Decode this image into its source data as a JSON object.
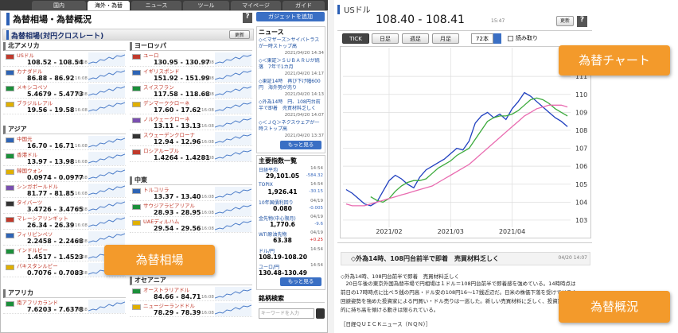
{
  "tabs": [
    "国内",
    "海外・為替",
    "ニュース",
    "ツール",
    "マイページ",
    "ガイド"
  ],
  "header": {
    "title": "為替相場・為替概況",
    "help": "?",
    "gadget": "ガジェットを追加"
  },
  "rates": {
    "title": "為替相場(対円クロスレート)",
    "refresh": "更新",
    "left": [
      {
        "region": "北アメリカ",
        "rows": [
          {
            "name": "USドル",
            "rate": "108.52 - 108.54",
            "time": "16:08"
          },
          {
            "name": "カナダドル",
            "rate": "86.88 - 86.92",
            "time": "16:08"
          },
          {
            "name": "メキシコペソ",
            "rate": "5.4679 - 5.4773",
            "time": "16:08"
          },
          {
            "name": "ブラジルレアル",
            "rate": "19.56 - 19.58",
            "time": "16:08"
          }
        ]
      },
      {
        "region": "アジア",
        "rows": [
          {
            "name": "中国元",
            "rate": "16.70 - 16.71",
            "time": "16:08"
          },
          {
            "name": "香港ドル",
            "rate": "13.97 - 13.98",
            "time": "16:08"
          },
          {
            "name": "韓国ウォン",
            "rate": "0.0974 - 0.0977",
            "time": "16:08"
          },
          {
            "name": "シンガポールドル",
            "rate": "81.77 - 81.85",
            "time": "16:08"
          },
          {
            "name": "タイバーツ",
            "rate": "3.4726 - 3.4765",
            "time": "16:08"
          },
          {
            "name": "マレーシアリンギット",
            "rate": "26.34 - 26.39",
            "time": "16:08"
          },
          {
            "name": "フィリピンペソ",
            "rate": "2.2458 - 2.2468",
            "time": "16:08"
          },
          {
            "name": "インドルピー",
            "rate": "1.4517 - 1.4523",
            "time": "16:08"
          },
          {
            "name": "パキスタンルピー",
            "rate": "0.7076 - 0.7083",
            "time": "16:08"
          }
        ]
      },
      {
        "region": "アフリカ",
        "rows": [
          {
            "name": "南アフリカランド",
            "rate": "7.6203 - 7.6378",
            "time": "16:08"
          }
        ]
      }
    ],
    "right": [
      {
        "region": "ヨーロッパ",
        "rows": [
          {
            "name": "ユーロ",
            "rate": "130.95 - 130.97",
            "time": "16:08"
          },
          {
            "name": "イギリスポンド",
            "rate": "151.92 - 151.99",
            "time": "16:08"
          },
          {
            "name": "スイスフラン",
            "rate": "117.58 - 118.68",
            "time": "16:08"
          },
          {
            "name": "デンマーククローネ",
            "rate": "17.60 - 17.62",
            "time": "16:08"
          },
          {
            "name": "ノルウェークローネ",
            "rate": "13.11 - 13.13",
            "time": "16:08"
          },
          {
            "name": "スウェーデンクローナ",
            "rate": "12.94 - 12.96",
            "time": "16:08"
          },
          {
            "name": "ロシアルーブル",
            "rate": "1.4264 - 1.4281",
            "time": "16:08"
          }
        ]
      },
      {
        "region": "中東",
        "rows": [
          {
            "name": "トルコリラ",
            "rate": "13.37 - 13.40",
            "time": "16:08"
          },
          {
            "name": "サウジアラビアリアル",
            "rate": "28.93 - 28.95",
            "time": "16:08"
          },
          {
            "name": "UAEディルハム",
            "rate": "29.54 - 29.56",
            "time": "16:08"
          }
        ]
      },
      {
        "region": "オセアニア",
        "rows": [
          {
            "name": "オーストラリアドル",
            "rate": "84.66 - 84.71",
            "time": "16:08"
          },
          {
            "name": "ニュージーランドドル",
            "rate": "78.29 - 78.39",
            "time": "16:08"
          }
        ]
      }
    ]
  },
  "news": {
    "title": "ニュース",
    "items": [
      {
        "text": "◇＜マザーズ＞サイバトラスが一時ストップ高",
        "date": "2021/04/20 14:34"
      },
      {
        "text": "◇＜東証＞ＳＵＢＡＲＵが続落　7年で1カ月",
        "date": "2021/04/20 14:17"
      },
      {
        "text": "◇東証14時　再び下げ幅600円　海外勢が売り",
        "date": "2021/04/20 14:13"
      },
      {
        "text": "◇外為14時　円、108円台前半で即着　売買材料乏しく",
        "date": "2021/04/20 14:07"
      },
      {
        "text": "◇＜ＪＱ＞ネクスウェアが一時ストップ高",
        "date": "2021/04/20 13:37"
      }
    ],
    "more": "もっと見る"
  },
  "indices": {
    "title": "主要指数一覧",
    "items": [
      {
        "name": "日経平均",
        "time": "14:54",
        "value": "29,101.05",
        "change": "-584.32"
      },
      {
        "name": "TOPIX",
        "time": "14:54",
        "value": "1,926.41",
        "change": "-30.15"
      },
      {
        "name": "10年国債利回り",
        "time": "04/19",
        "value": "0.080",
        "change": "-0.005"
      },
      {
        "name": "金先物(中心限月)",
        "time": "04/19",
        "value": "1,770.6",
        "change": "-9.6"
      },
      {
        "name": "WTI原油先物",
        "time": "04/19",
        "value": "63.38",
        "change": "+0.25"
      },
      {
        "name": "ドル/円",
        "time": "14:54",
        "value": "108.19-108.20"
      },
      {
        "name": "ユーロ/円",
        "time": "14:54",
        "value": "130.48-130.49"
      }
    ],
    "more": "もっと見る"
  },
  "search": {
    "title": "銘柄検索",
    "placeholder": "キーワードを入力"
  },
  "usd": {
    "name": "USドル",
    "rate": "108.40 - 108.41",
    "time": "15:47",
    "refresh": "更新",
    "help": "?",
    "buttons": [
      "TICK",
      "日足",
      "週足",
      "月足"
    ],
    "count": "72本",
    "read": "読み取り"
  },
  "chart_data": {
    "type": "line",
    "grid": true,
    "categories": [
      null,
      null,
      null,
      null,
      null,
      null,
      null,
      "2021/02",
      null,
      null,
      null,
      null,
      null,
      null,
      null,
      null,
      null,
      "2021/03",
      null,
      null,
      null,
      null,
      null,
      null,
      null,
      null,
      null,
      "2021/04",
      null,
      null,
      null,
      null,
      null,
      null,
      null,
      null,
      null
    ],
    "ylim": [
      102.6,
      112.6
    ],
    "yticks": [
      103,
      104,
      105,
      106,
      107,
      108,
      109,
      110,
      111
    ],
    "series": [
      {
        "color": "#1f3fbf",
        "values": [
          104.7,
          104.5,
          104.2,
          103.9,
          103.8,
          104.0,
          104.6,
          105.2,
          105.5,
          105.3,
          105.0,
          104.8,
          105.4,
          105.8,
          106.0,
          106.2,
          106.4,
          106.7,
          107.0,
          106.9,
          107.4,
          108.4,
          108.8,
          109.0,
          108.7,
          108.9,
          108.6,
          109.2,
          109.6,
          110.1,
          109.9,
          109.6,
          109.3,
          109.0,
          108.7,
          108.5,
          108.2
        ]
      },
      {
        "color": "#3caa3c",
        "values": [
          null,
          null,
          null,
          null,
          104.3,
          104.1,
          104.0,
          104.2,
          104.6,
          104.9,
          105.1,
          105.2,
          105.2,
          105.3,
          105.6,
          105.9,
          106.1,
          106.3,
          106.6,
          106.8,
          107.0,
          107.5,
          108.0,
          108.5,
          108.7,
          108.8,
          108.8,
          108.9,
          109.1,
          109.4,
          109.7,
          109.8,
          109.7,
          109.5,
          109.2,
          109.0,
          108.8
        ]
      },
      {
        "color": "#e96bb0",
        "values": [
          103.9,
          103.8,
          103.8,
          103.8,
          103.9,
          104.0,
          104.1,
          104.2,
          104.3,
          104.4,
          104.5,
          104.6,
          104.7,
          104.8,
          104.9,
          105.1,
          105.3,
          105.5,
          105.7,
          105.9,
          106.1,
          106.4,
          106.7,
          107.0,
          107.3,
          107.6,
          107.9,
          108.2,
          108.5,
          108.8,
          109.0,
          109.2,
          109.3,
          109.4,
          109.4,
          109.4,
          109.3
        ]
      }
    ]
  },
  "summary": {
    "headline": "◇外為14時、108円台前半で即着　売買材料乏しく",
    "date": "04/20 14:07",
    "body": [
      "◇外為14時、108円台前半で即着　売買材料乏しく",
      "　20日午後の東京外国為替市場で円相場は１ドル＝108円台前半で即着感を強めている。14時時点は前日の17時時点に比べ５銭の円高・ドル安の108円16～17銭近辺だ。日米の株価下落を受けてリスク回避姿勢を強めた投資家による円買い・ドル売りは一巡した。新しい売買材料に乏しく、投資家は積極的に持ち高を傾ける動きは限られている。"
    ],
    "source": "［日経ＱＵＩＣＫニュース（ＮＱＮ）］"
  },
  "callouts": [
    "為替相場",
    "為替チャート",
    "為替概況"
  ]
}
